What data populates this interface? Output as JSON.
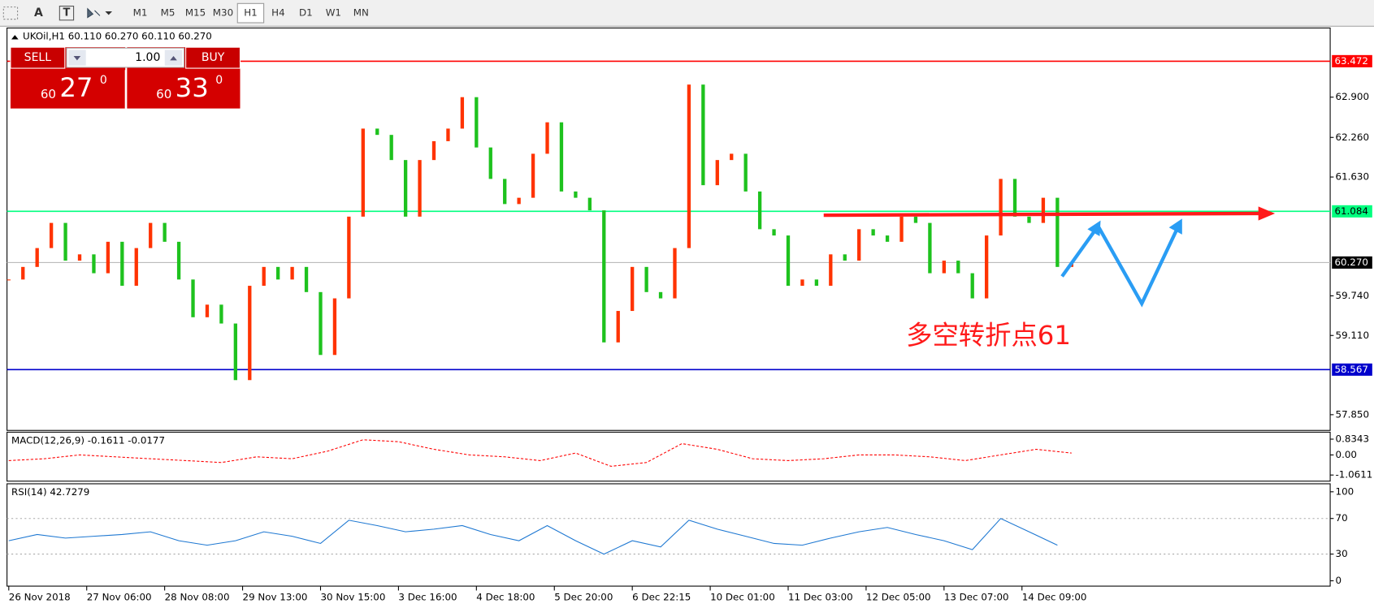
{
  "toolbar": {
    "tools": [
      "A",
      "T"
    ],
    "timeframes": [
      "M1",
      "M5",
      "M15",
      "M30",
      "H1",
      "H4",
      "D1",
      "W1",
      "MN"
    ]
  },
  "trade_panel": {
    "sell": "SELL",
    "buy": "BUY",
    "volume": "1.00",
    "sell_price": {
      "prefix": "60",
      "big": "27",
      "sup": "0"
    },
    "buy_price": {
      "prefix": "60",
      "big": "33",
      "sup": "0"
    }
  },
  "annotation": "多空转折点61",
  "chart_data": [
    {
      "type": "candle-line",
      "title": "UKOil,H1 60.110 60.270 60.110 60.270",
      "up_color": "#ff3300",
      "down_color": "#1ec21e",
      "x": [
        0,
        4,
        8,
        12,
        16,
        20,
        24,
        28,
        32,
        36,
        40,
        44,
        48,
        52,
        56,
        60,
        64,
        68,
        72,
        76,
        80,
        84,
        88,
        92,
        96,
        100,
        104,
        108,
        112,
        116,
        120,
        124,
        128,
        132,
        136,
        140,
        144,
        148,
        152,
        156,
        160,
        164,
        168,
        172,
        176,
        180,
        184,
        188,
        192,
        196,
        200,
        204,
        208,
        212,
        216,
        220,
        224,
        228,
        232,
        236,
        240,
        244,
        248,
        252,
        256,
        260,
        264,
        268,
        272,
        276,
        280,
        284,
        288,
        292,
        296,
        300
      ],
      "values": [
        60.0,
        60.2,
        60.5,
        60.9,
        60.3,
        60.4,
        60.1,
        60.6,
        59.9,
        60.5,
        60.9,
        60.6,
        60.0,
        59.4,
        59.6,
        59.3,
        58.4,
        59.9,
        60.2,
        60.0,
        60.2,
        59.8,
        58.8,
        59.7,
        61.0,
        62.4,
        62.3,
        61.9,
        61.0,
        61.9,
        62.2,
        62.4,
        62.9,
        62.1,
        61.6,
        61.2,
        61.3,
        62.0,
        62.5,
        61.4,
        61.3,
        61.1,
        59.0,
        59.5,
        60.2,
        59.8,
        59.7,
        60.5,
        63.1,
        61.5,
        61.9,
        62.0,
        61.4,
        60.8,
        60.7,
        59.9,
        60.0,
        59.9,
        60.4,
        60.3,
        60.8,
        60.7,
        60.6,
        61.0,
        60.9,
        60.1,
        60.3,
        60.1,
        59.7,
        60.7,
        61.6,
        61.0,
        60.9,
        61.3,
        60.2,
        60.27
      ],
      "xlim": [
        -0.5,
        373
      ],
      "xticks": [
        {
          "value": 0,
          "label": "26 Nov 2018"
        },
        {
          "value": 22,
          "label": "27 Nov 06:00"
        },
        {
          "value": 44,
          "label": "28 Nov 08:00"
        },
        {
          "value": 66,
          "label": "29 Nov 13:00"
        },
        {
          "value": 88,
          "label": "30 Nov 15:00"
        },
        {
          "value": 110,
          "label": "3 Dec 16:00"
        },
        {
          "value": 132,
          "label": "4 Dec 18:00"
        },
        {
          "value": 154,
          "label": "5 Dec 20:00"
        },
        {
          "value": 176,
          "label": "6 Dec 22:15"
        },
        {
          "value": 198,
          "label": "10 Dec 01:00"
        },
        {
          "value": 220,
          "label": "11 Dec 03:00"
        },
        {
          "value": 242,
          "label": "12 Dec 05:00"
        },
        {
          "value": 264,
          "label": "13 Dec 07:00"
        },
        {
          "value": 286,
          "label": "14 Dec 09:00"
        }
      ],
      "ylim": [
        57.6,
        64.0
      ],
      "yticks": [
        {
          "value": 57.85,
          "label": "57.850"
        },
        {
          "value": 59.11,
          "label": "59.110"
        },
        {
          "value": 59.74,
          "label": "59.740"
        },
        {
          "value": 61.63,
          "label": "61.630"
        },
        {
          "value": 62.26,
          "label": "62.260"
        },
        {
          "value": 62.9,
          "label": "62.900"
        }
      ],
      "levels": [
        {
          "value": 63.472,
          "label": "63.472",
          "color": "#ff0000"
        },
        {
          "value": 61.084,
          "label": "61.084",
          "color": "#00ff7f"
        },
        {
          "value": 58.567,
          "label": "58.567",
          "color": "#0000cc"
        },
        {
          "value": 60.27,
          "label": "60.270",
          "color": "#000000"
        }
      ]
    },
    {
      "type": "line",
      "title": "MACD(12,26,9) -0.1611 -0.0177",
      "color": "#ff0000",
      "dashed": true,
      "x": [
        0,
        10,
        20,
        30,
        40,
        50,
        60,
        70,
        80,
        90,
        100,
        110,
        120,
        130,
        140,
        150,
        160,
        170,
        180,
        190,
        200,
        210,
        220,
        230,
        240,
        250,
        260,
        270,
        280,
        290,
        300
      ],
      "values": [
        -0.3,
        -0.2,
        0,
        -0.1,
        -0.2,
        -0.3,
        -0.4,
        -0.1,
        -0.2,
        0.2,
        0.8,
        0.7,
        0.3,
        0,
        -0.1,
        -0.3,
        0.1,
        -0.6,
        -0.4,
        0.6,
        0.3,
        -0.2,
        -0.3,
        -0.2,
        0,
        0,
        -0.1,
        -0.3,
        0,
        0.3,
        0.1
      ],
      "xlim": [
        -0.5,
        373
      ],
      "ylim": [
        -1.385,
        1.204
      ],
      "yticks": [
        -1.0611,
        {
          "value": 0,
          "label": "0.00"
        },
        0.8343
      ]
    },
    {
      "type": "line",
      "title": "RSI(14) 42.7279",
      "color": "#1e78d2",
      "dashed": false,
      "x": [
        0,
        8,
        16,
        24,
        32,
        40,
        48,
        56,
        64,
        72,
        80,
        88,
        96,
        104,
        112,
        120,
        128,
        136,
        144,
        152,
        160,
        168,
        176,
        184,
        192,
        200,
        208,
        216,
        224,
        232,
        240,
        248,
        256,
        264,
        272,
        280,
        288,
        296
      ],
      "values": [
        45,
        52,
        48,
        50,
        52,
        55,
        45,
        40,
        45,
        55,
        50,
        42,
        68,
        62,
        55,
        58,
        62,
        52,
        45,
        62,
        45,
        30,
        45,
        38,
        68,
        58,
        50,
        42,
        40,
        48,
        55,
        60,
        52,
        45,
        35,
        70,
        55,
        40
      ],
      "xlim": [
        -0.5,
        373
      ],
      "ylim": [
        -6,
        109
      ],
      "yticks": [
        0,
        30,
        70,
        100
      ],
      "levels": [
        30,
        70
      ]
    }
  ]
}
